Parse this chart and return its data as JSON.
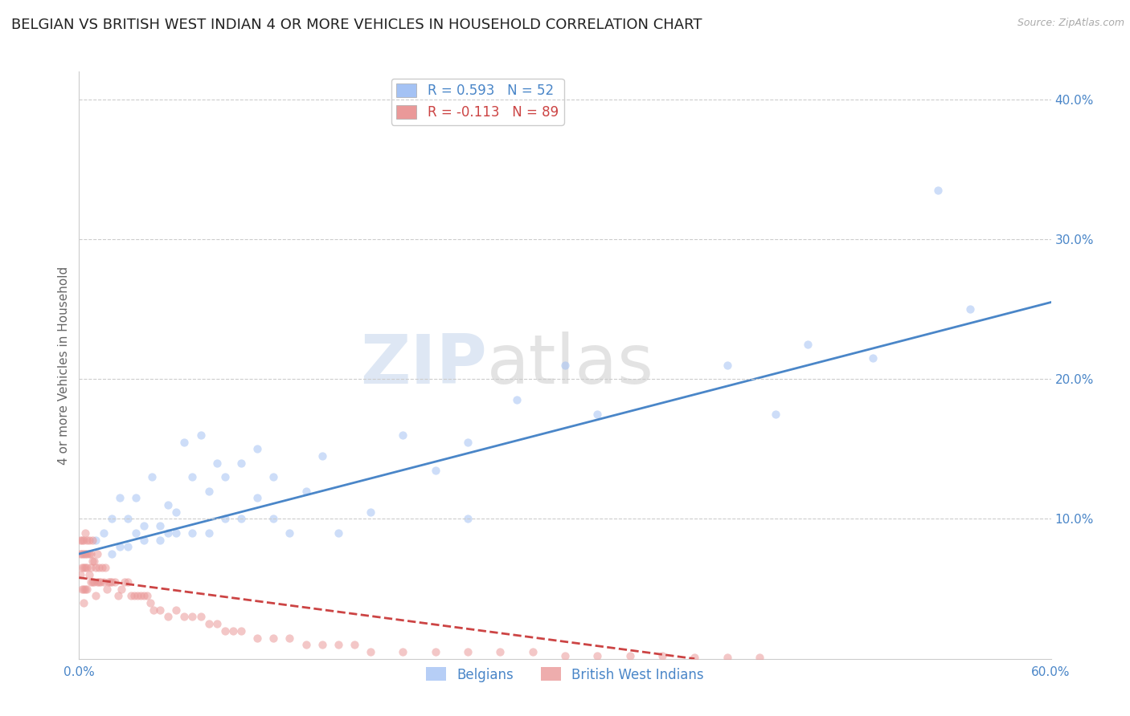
{
  "title": "BELGIAN VS BRITISH WEST INDIAN 4 OR MORE VEHICLES IN HOUSEHOLD CORRELATION CHART",
  "source": "Source: ZipAtlas.com",
  "ylabel": "4 or more Vehicles in Household",
  "xlim": [
    0.0,
    0.6
  ],
  "ylim": [
    0.0,
    0.42
  ],
  "xticks": [
    0.0,
    0.1,
    0.2,
    0.3,
    0.4,
    0.5,
    0.6
  ],
  "yticks": [
    0.1,
    0.2,
    0.3,
    0.4
  ],
  "xticklabels": [
    "0.0%",
    "",
    "",
    "",
    "",
    "",
    "60.0%"
  ],
  "yticklabels": [
    "10.0%",
    "20.0%",
    "30.0%",
    "40.0%"
  ],
  "blue_R": 0.593,
  "blue_N": 52,
  "pink_R": -0.113,
  "pink_N": 89,
  "blue_color": "#a4c2f4",
  "pink_color": "#ea9999",
  "line_blue": "#4a86c8",
  "line_pink": "#cc4444",
  "watermark_left": "ZIP",
  "watermark_right": "atlas",
  "legend_label_blue": "Belgians",
  "legend_label_pink": "British West Indians",
  "blue_scatter_x": [
    0.01,
    0.015,
    0.02,
    0.025,
    0.02,
    0.025,
    0.03,
    0.03,
    0.035,
    0.035,
    0.04,
    0.04,
    0.045,
    0.05,
    0.05,
    0.055,
    0.055,
    0.06,
    0.06,
    0.065,
    0.07,
    0.07,
    0.075,
    0.08,
    0.08,
    0.085,
    0.09,
    0.09,
    0.1,
    0.1,
    0.11,
    0.11,
    0.12,
    0.12,
    0.13,
    0.14,
    0.15,
    0.16,
    0.18,
    0.2,
    0.22,
    0.24,
    0.24,
    0.27,
    0.3,
    0.32,
    0.4,
    0.43,
    0.45,
    0.49,
    0.53,
    0.55
  ],
  "blue_scatter_y": [
    0.085,
    0.09,
    0.075,
    0.08,
    0.1,
    0.115,
    0.08,
    0.1,
    0.09,
    0.115,
    0.085,
    0.095,
    0.13,
    0.085,
    0.095,
    0.09,
    0.11,
    0.09,
    0.105,
    0.155,
    0.09,
    0.13,
    0.16,
    0.09,
    0.12,
    0.14,
    0.1,
    0.13,
    0.1,
    0.14,
    0.115,
    0.15,
    0.1,
    0.13,
    0.09,
    0.12,
    0.145,
    0.09,
    0.105,
    0.16,
    0.135,
    0.1,
    0.155,
    0.185,
    0.21,
    0.175,
    0.21,
    0.175,
    0.225,
    0.215,
    0.335,
    0.25
  ],
  "pink_scatter_x": [
    0.001,
    0.001,
    0.001,
    0.002,
    0.002,
    0.002,
    0.002,
    0.003,
    0.003,
    0.003,
    0.003,
    0.003,
    0.004,
    0.004,
    0.004,
    0.004,
    0.005,
    0.005,
    0.005,
    0.005,
    0.006,
    0.006,
    0.006,
    0.007,
    0.007,
    0.007,
    0.008,
    0.008,
    0.008,
    0.009,
    0.009,
    0.01,
    0.01,
    0.011,
    0.011,
    0.012,
    0.012,
    0.013,
    0.014,
    0.015,
    0.016,
    0.017,
    0.018,
    0.019,
    0.02,
    0.022,
    0.024,
    0.026,
    0.028,
    0.03,
    0.032,
    0.034,
    0.036,
    0.038,
    0.04,
    0.042,
    0.044,
    0.046,
    0.05,
    0.055,
    0.06,
    0.065,
    0.07,
    0.075,
    0.08,
    0.085,
    0.09,
    0.095,
    0.1,
    0.11,
    0.12,
    0.13,
    0.14,
    0.15,
    0.16,
    0.17,
    0.18,
    0.2,
    0.22,
    0.24,
    0.26,
    0.28,
    0.3,
    0.32,
    0.34,
    0.36,
    0.38,
    0.4,
    0.42
  ],
  "pink_scatter_y": [
    0.06,
    0.075,
    0.085,
    0.05,
    0.065,
    0.075,
    0.085,
    0.04,
    0.05,
    0.065,
    0.075,
    0.085,
    0.05,
    0.065,
    0.075,
    0.09,
    0.05,
    0.065,
    0.075,
    0.085,
    0.06,
    0.075,
    0.085,
    0.055,
    0.065,
    0.075,
    0.055,
    0.07,
    0.085,
    0.055,
    0.07,
    0.045,
    0.065,
    0.055,
    0.075,
    0.055,
    0.065,
    0.055,
    0.065,
    0.055,
    0.065,
    0.05,
    0.055,
    0.055,
    0.055,
    0.055,
    0.045,
    0.05,
    0.055,
    0.055,
    0.045,
    0.045,
    0.045,
    0.045,
    0.045,
    0.045,
    0.04,
    0.035,
    0.035,
    0.03,
    0.035,
    0.03,
    0.03,
    0.03,
    0.025,
    0.025,
    0.02,
    0.02,
    0.02,
    0.015,
    0.015,
    0.015,
    0.01,
    0.01,
    0.01,
    0.01,
    0.005,
    0.005,
    0.005,
    0.005,
    0.005,
    0.005,
    0.002,
    0.002,
    0.002,
    0.002,
    0.001,
    0.001,
    0.001
  ],
  "blue_line_x": [
    0.0,
    0.6
  ],
  "blue_line_y": [
    0.075,
    0.255
  ],
  "pink_line_x": [
    0.0,
    0.38
  ],
  "pink_line_y": [
    0.058,
    0.0
  ],
  "background_color": "#ffffff",
  "grid_color": "#cccccc",
  "tick_color": "#4a86c8",
  "title_fontsize": 13,
  "axis_label_fontsize": 11,
  "tick_fontsize": 11,
  "legend_fontsize": 12,
  "scatter_size": 55,
  "scatter_alpha": 0.55,
  "line_width": 2.0
}
